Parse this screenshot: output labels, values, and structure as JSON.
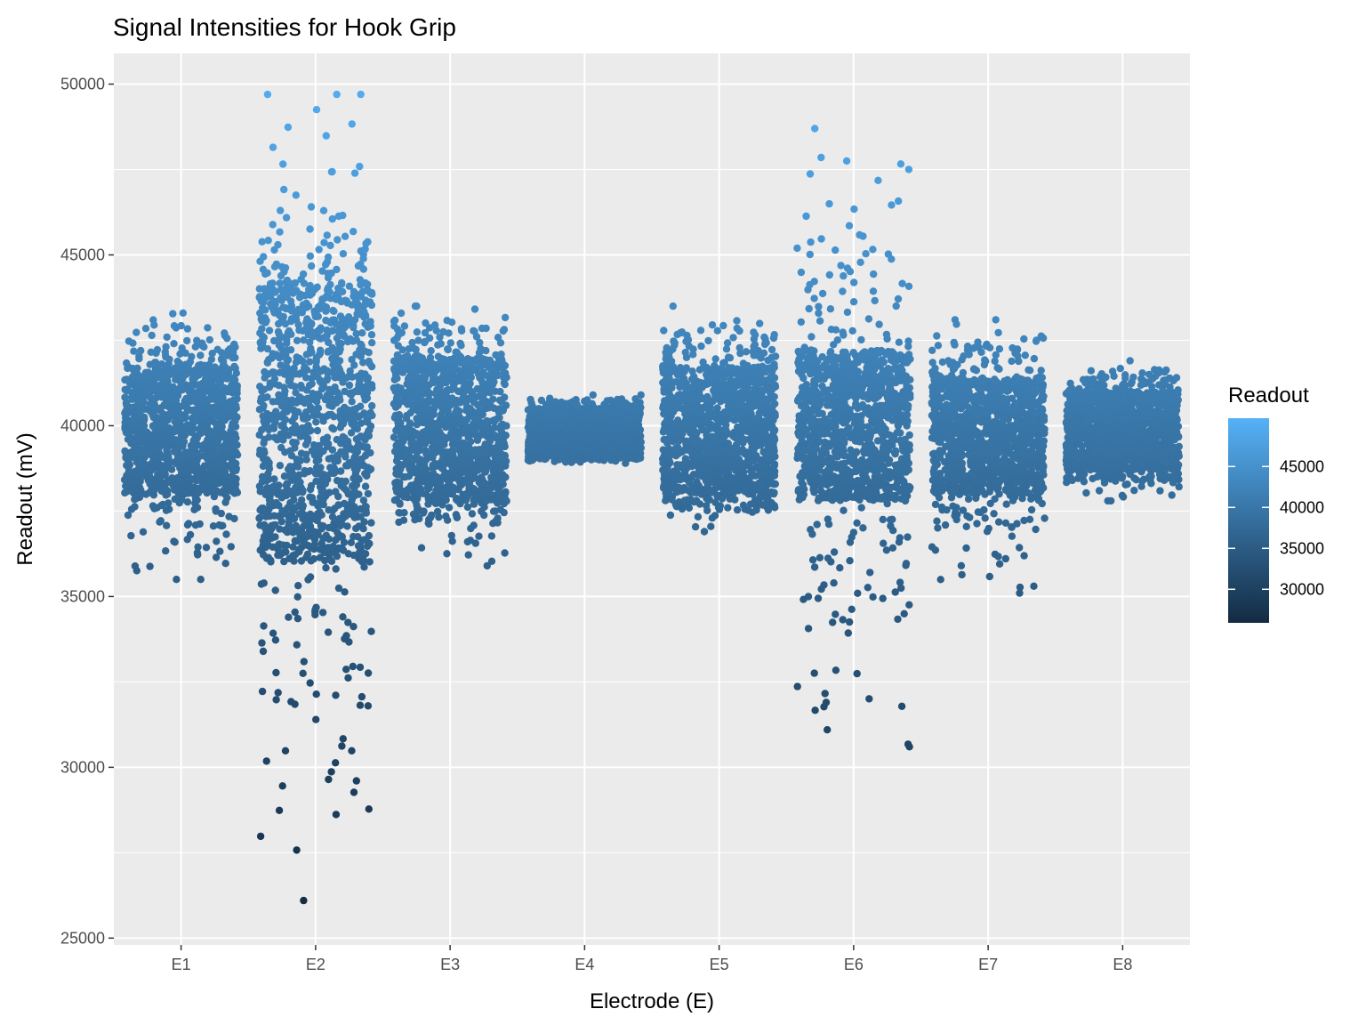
{
  "chart_data": {
    "type": "scatter",
    "title": "Signal Intensities for Hook Grip",
    "xlabel": "Electrode (E)",
    "ylabel": "Readout (mV)",
    "categories": [
      "E1",
      "E2",
      "E3",
      "E4",
      "E5",
      "E6",
      "E7",
      "E8"
    ],
    "ylim": [
      24800,
      50900
    ],
    "y_ticks": [
      25000,
      30000,
      35000,
      40000,
      45000,
      50000
    ],
    "y_tick_labels": [
      "25000",
      "30000",
      "35000",
      "40000",
      "45000",
      "50000"
    ],
    "grid": true,
    "jitter": "horizontal",
    "series": [
      {
        "category": "E1",
        "core_low": 38000,
        "core_high": 41800,
        "min": 35500,
        "max": 43300
      },
      {
        "category": "E2",
        "core_low": 36000,
        "core_high": 44200,
        "min": 26100,
        "max": 49700
      },
      {
        "category": "E3",
        "core_low": 37800,
        "core_high": 42000,
        "min": 35900,
        "max": 43500
      },
      {
        "category": "E4",
        "core_low": 39100,
        "core_high": 40500,
        "min": 38900,
        "max": 40900
      },
      {
        "category": "E5",
        "core_low": 38000,
        "core_high": 41800,
        "min": 36900,
        "max": 43500
      },
      {
        "category": "E6",
        "core_low": 37800,
        "core_high": 42200,
        "min": 30600,
        "max": 48700
      },
      {
        "category": "E7",
        "core_low": 38000,
        "core_high": 41400,
        "min": 35100,
        "max": 43100
      },
      {
        "category": "E8",
        "core_low": 38700,
        "core_high": 41000,
        "min": 37800,
        "max": 41900
      }
    ],
    "legend": {
      "title": "Readout",
      "position": "right",
      "labels": [
        "45000",
        "40000",
        "35000",
        "30000"
      ],
      "values": [
        45000,
        40000,
        35000,
        30000
      ],
      "range": [
        25900,
        50900
      ],
      "color_low": "#132B43",
      "color_high": "#56B1F7"
    }
  },
  "colors": {
    "panel_background": "#EBEBEB",
    "grid_major": "#FFFFFF",
    "tick_text": "#4D4D4D"
  }
}
